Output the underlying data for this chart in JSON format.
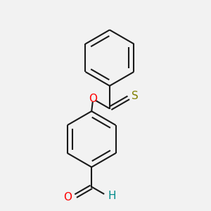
{
  "background_color": "#f2f2f2",
  "line_color": "#1a1a1a",
  "O_color": "#ff0000",
  "S_color": "#808000",
  "H_color": "#008b8b",
  "line_width": 1.5,
  "figsize": [
    3.0,
    3.0
  ],
  "dpi": 100,
  "xlim": [
    0,
    10
  ],
  "ylim": [
    0,
    10
  ]
}
